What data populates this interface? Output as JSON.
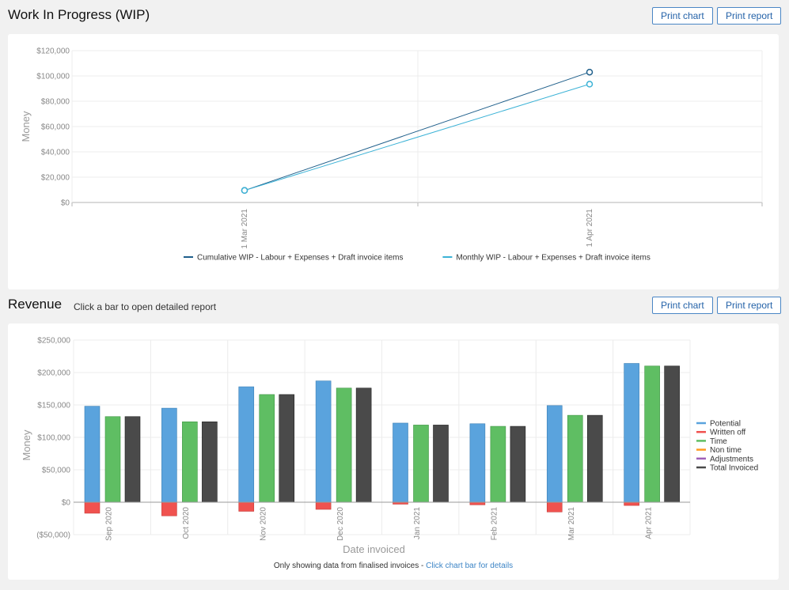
{
  "wip": {
    "title": "Work In Progress (WIP)",
    "print_chart": "Print chart",
    "print_report": "Print report"
  },
  "revenue": {
    "title": "Revenue",
    "subtitle": "Click a bar to open detailed report",
    "print_chart": "Print chart",
    "print_report": "Print report",
    "footnote": "Only showing data from finalised invoices - ",
    "footnote_link": "Click chart bar for details"
  },
  "chart_data": [
    {
      "type": "line",
      "ylabel": "Money",
      "xlabel": "",
      "ylim": [
        0,
        120000
      ],
      "yticks": [
        0,
        20000,
        40000,
        60000,
        80000,
        100000,
        120000
      ],
      "ytick_labels": [
        "$0",
        "$20,000",
        "$40,000",
        "$60,000",
        "$80,000",
        "$100,000",
        "$120,000"
      ],
      "categories": [
        "1 Mar 2021",
        "1 Apr 2021"
      ],
      "series": [
        {
          "name": "Cumulative WIP - Labour + Expenses + Draft invoice items",
          "color": "#1f5f8b",
          "values": [
            9500,
            103000
          ]
        },
        {
          "name": "Monthly WIP - Labour + Expenses + Draft invoice items",
          "color": "#3bb2d6",
          "values": [
            9500,
            93500
          ]
        }
      ],
      "legend_position": "bottom"
    },
    {
      "type": "bar",
      "ylabel": "Money",
      "xlabel": "Date invoiced",
      "ylim": [
        -50000,
        250000
      ],
      "yticks": [
        -50000,
        0,
        50000,
        100000,
        150000,
        200000,
        250000
      ],
      "ytick_labels": [
        "($50,000)",
        "$0",
        "$50,000",
        "$100,000",
        "$150,000",
        "$200,000",
        "$250,000"
      ],
      "categories": [
        "Sep 2020",
        "Oct 2020",
        "Nov 2020",
        "Dec 2020",
        "Jan 2021",
        "Feb 2021",
        "Mar 2021",
        "Apr 2021"
      ],
      "series": [
        {
          "name": "Potential",
          "color": "#5aa3dd",
          "values": [
            148000,
            145000,
            178000,
            187000,
            122000,
            121000,
            149000,
            214000
          ]
        },
        {
          "name": "Written off",
          "color": "#f0524f",
          "values": [
            -17000,
            -21000,
            -14000,
            -11000,
            -3000,
            -4000,
            -15000,
            -5000
          ]
        },
        {
          "name": "Time",
          "color": "#5fbe63",
          "values": [
            132000,
            124000,
            166000,
            176000,
            119000,
            117000,
            134000,
            210000
          ]
        },
        {
          "name": "Non time",
          "color": "#ff9a1f",
          "values": [
            0,
            0,
            0,
            0,
            0,
            0,
            0,
            0
          ]
        },
        {
          "name": "Adjustments",
          "color": "#a060b8",
          "values": [
            0,
            0,
            0,
            0,
            0,
            0,
            0,
            0
          ]
        },
        {
          "name": "Total Invoiced",
          "color": "#4a4a4a",
          "values": [
            132000,
            124000,
            166000,
            176000,
            119000,
            117000,
            134000,
            210000
          ]
        }
      ],
      "legend_position": "right"
    }
  ]
}
